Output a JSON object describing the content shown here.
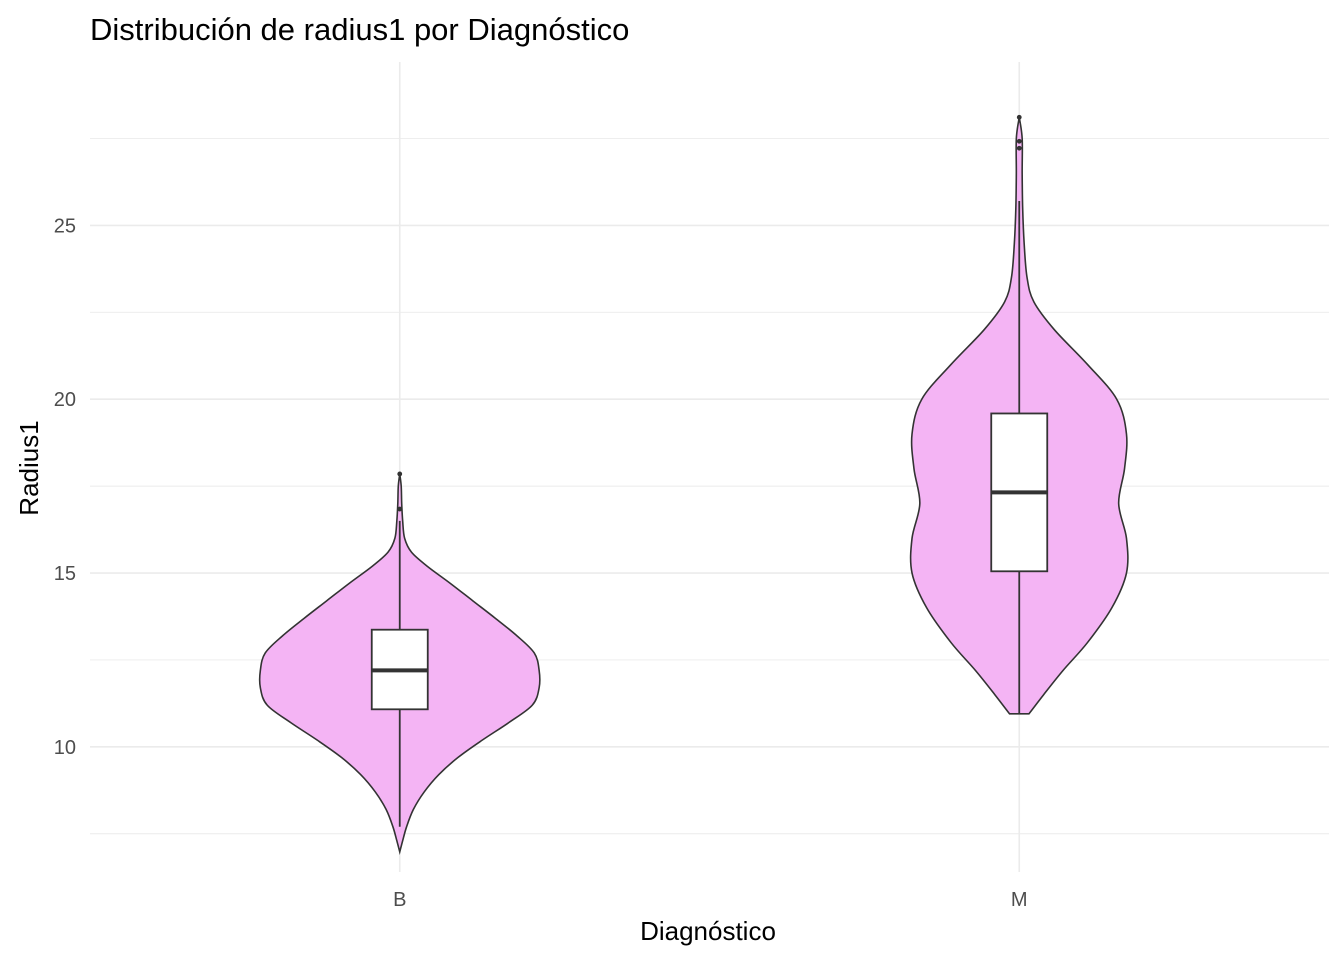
{
  "chart_data": {
    "type": "violin",
    "title": "Distribución de radius1 por Diagnóstico",
    "xlabel": "Diagnóstico",
    "ylabel": "Radius1",
    "categories": [
      "B",
      "M"
    ],
    "ylim": [
      6.4,
      29.7
    ],
    "yticks": [
      10,
      15,
      20,
      25
    ],
    "grid": true,
    "legend": "none",
    "colors": {
      "violin_fill": "#f4b4f4",
      "violin_stroke": "#333333",
      "box_fill": "#ffffff",
      "box_stroke": "#333333"
    },
    "series": [
      {
        "category": "B",
        "min": 6.98,
        "max": 17.85,
        "box": {
          "whisker_low": 7.7,
          "q1": 11.08,
          "median": 12.2,
          "q3": 13.37,
          "whisker_high": 16.5
        },
        "outliers": [
          16.84,
          17.85
        ],
        "density_half_widths": [
          [
            6.98,
            0.0
          ],
          [
            7.3,
            0.03
          ],
          [
            7.7,
            0.07
          ],
          [
            8.2,
            0.14
          ],
          [
            8.7,
            0.25
          ],
          [
            9.2,
            0.4
          ],
          [
            9.7,
            0.6
          ],
          [
            10.2,
            0.85
          ],
          [
            10.7,
            1.12
          ],
          [
            11.2,
            1.36
          ],
          [
            11.7,
            1.43
          ],
          [
            12.2,
            1.43
          ],
          [
            12.7,
            1.38
          ],
          [
            13.2,
            1.2
          ],
          [
            13.7,
            0.98
          ],
          [
            14.2,
            0.75
          ],
          [
            14.7,
            0.52
          ],
          [
            15.2,
            0.28
          ],
          [
            15.6,
            0.12
          ],
          [
            16.0,
            0.05
          ],
          [
            16.5,
            0.03
          ],
          [
            17.0,
            0.02
          ],
          [
            17.5,
            0.015
          ],
          [
            17.85,
            0.0
          ]
        ]
      },
      {
        "category": "M",
        "min": 10.95,
        "max": 28.11,
        "box": {
          "whisker_low": 10.95,
          "q1": 15.05,
          "median": 17.32,
          "q3": 19.59,
          "whisker_high": 25.7
        },
        "outliers": [
          27.22,
          27.42,
          28.11
        ],
        "density_half_widths": [
          [
            10.95,
            0.1
          ],
          [
            11.5,
            0.25
          ],
          [
            12.2,
            0.45
          ],
          [
            13.0,
            0.7
          ],
          [
            14.0,
            0.95
          ],
          [
            15.0,
            1.1
          ],
          [
            16.0,
            1.1
          ],
          [
            17.0,
            1.02
          ],
          [
            18.0,
            1.08
          ],
          [
            19.0,
            1.1
          ],
          [
            20.0,
            1.0
          ],
          [
            21.0,
            0.7
          ],
          [
            22.0,
            0.36
          ],
          [
            22.8,
            0.15
          ],
          [
            23.5,
            0.08
          ],
          [
            24.5,
            0.05
          ],
          [
            25.5,
            0.035
          ],
          [
            26.5,
            0.03
          ],
          [
            27.5,
            0.03
          ],
          [
            28.11,
            0.0
          ]
        ]
      }
    ]
  }
}
